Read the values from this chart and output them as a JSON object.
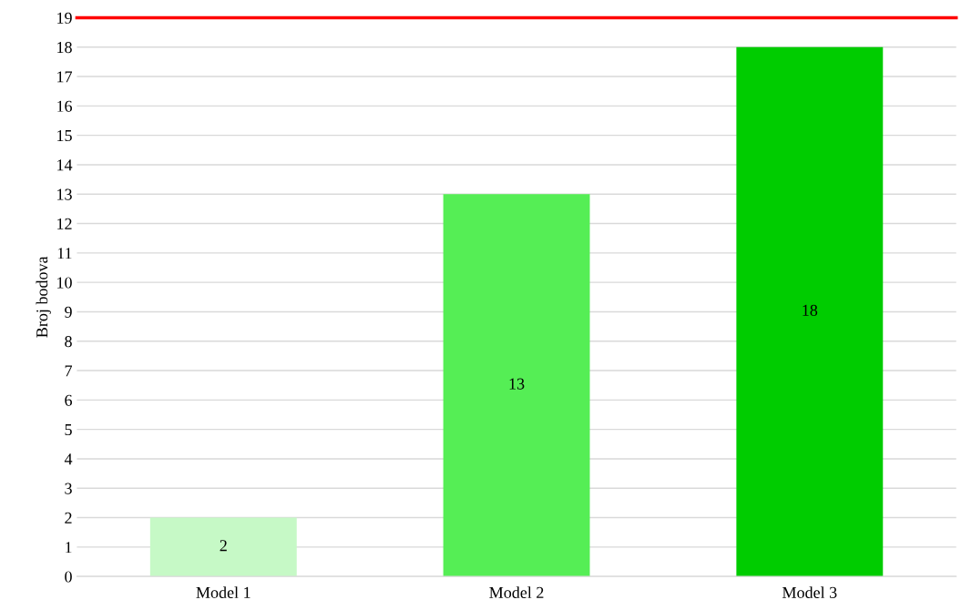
{
  "chart_data": {
    "type": "bar",
    "ylabel": "Broj bodova",
    "categories": [
      "Model 1",
      "Model 2",
      "Model 3"
    ],
    "values": [
      2,
      13,
      18
    ],
    "colors": [
      "#c6f9c6",
      "#55ee55",
      "#00cc00"
    ],
    "ylim": [
      0,
      19
    ],
    "yticks": [
      0,
      1,
      2,
      3,
      4,
      5,
      6,
      7,
      8,
      9,
      10,
      11,
      12,
      13,
      14,
      15,
      16,
      17,
      18,
      19
    ],
    "grid": "y",
    "data_labels": true,
    "ref_lines": [
      {
        "axis": "y",
        "value": 19,
        "color": "#ff0000"
      }
    ]
  }
}
